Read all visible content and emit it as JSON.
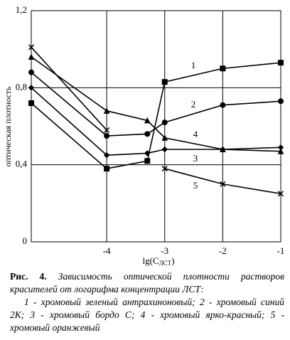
{
  "chart_data": {
    "type": "line",
    "y_label": "оптическая плотность",
    "x_label": [
      "lg(C",
      "ЛСТ",
      ")"
    ],
    "x": [
      -5.3,
      -4,
      -3.3,
      -3,
      -2,
      -1
    ],
    "xlim": [
      -5.3,
      -1
    ],
    "xticks": [
      -4,
      -3,
      -2,
      -1
    ],
    "ylim": [
      0,
      1.2
    ],
    "yticks": [
      {
        "value": 0,
        "label": "0"
      },
      {
        "value": 0.4,
        "label": "0,4"
      },
      {
        "value": 0.8,
        "label": "0,8"
      },
      {
        "value": 1.2,
        "label": "1,2"
      }
    ],
    "grid": true,
    "series": [
      {
        "name": "1",
        "color": "#000000",
        "marker": "square",
        "values": [
          0.72,
          0.38,
          0.42,
          0.83,
          0.9,
          0.93
        ]
      },
      {
        "name": "2",
        "color": "#000000",
        "marker": "circle",
        "values": [
          0.88,
          0.55,
          0.56,
          0.62,
          0.71,
          0.73
        ]
      },
      {
        "name": "3",
        "color": "#000000",
        "marker": "diamond",
        "values": [
          0.8,
          0.45,
          0.46,
          0.48,
          0.48,
          0.49
        ]
      },
      {
        "name": "4",
        "color": "#000000",
        "marker": "triangle",
        "values": [
          0.96,
          0.68,
          0.63,
          0.54,
          0.48,
          0.47
        ]
      },
      {
        "name": "5",
        "color": "#000000",
        "marker": "star",
        "values": [
          1.01,
          0.58,
          null,
          0.38,
          0.3,
          0.25
        ]
      }
    ]
  },
  "caption": {
    "label": "Рис. 4.",
    "text": "Зависимость оптической плотности растворов красителей от логарифма концентрации ЛСТ:",
    "legend": "1 - хромовый зеленый антрахиноновый; 2 - хромовый синий 2К; 3 - хромовый бордо С; 4 - хромовый ярко-красный; 5 - хромовый оранжевый"
  }
}
